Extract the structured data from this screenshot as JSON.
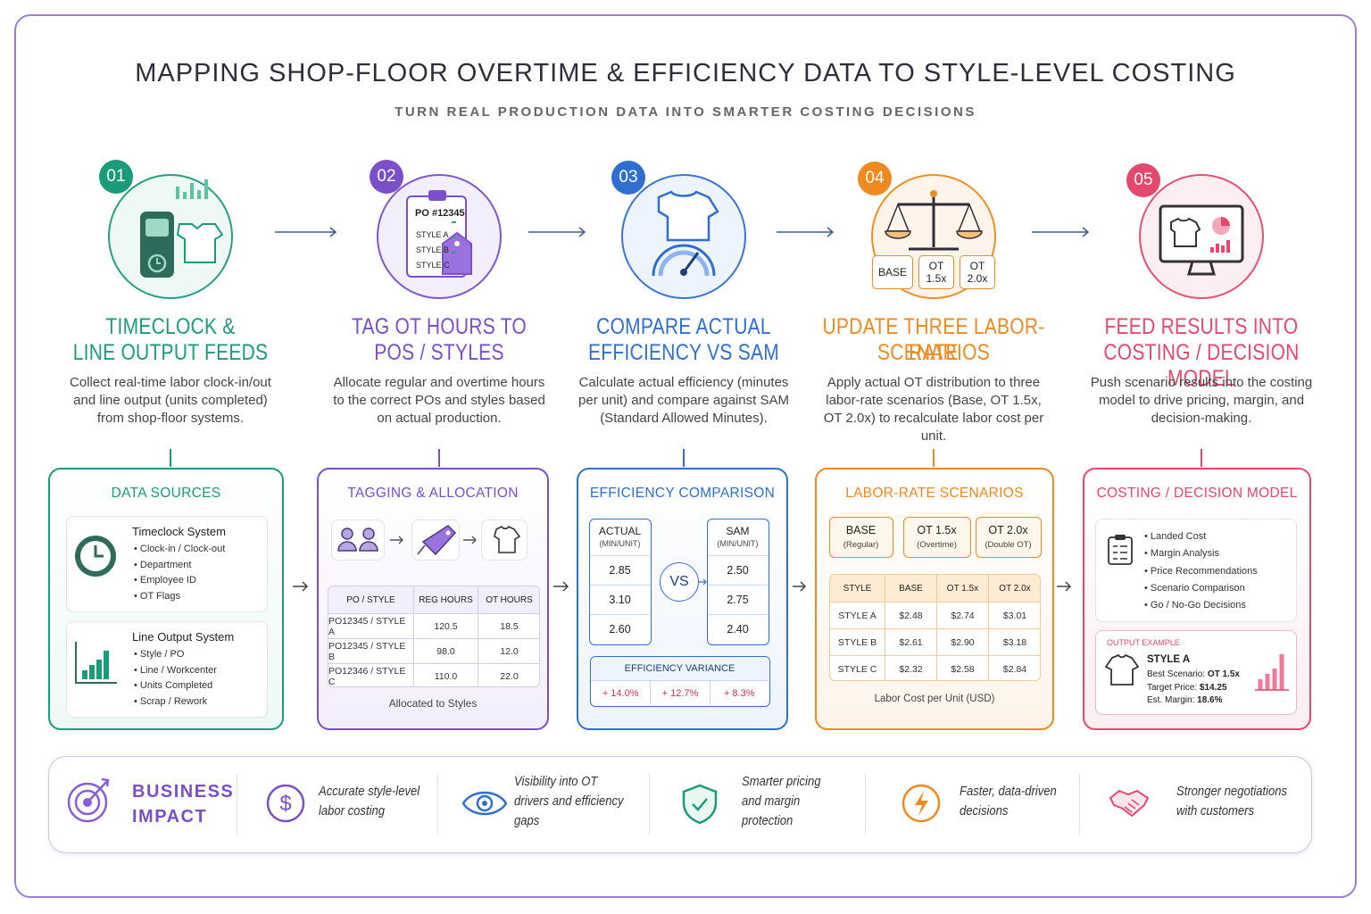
{
  "header": {
    "title": "MAPPING SHOP-FLOOR OVERTIME & EFFICIENCY DATA TO STYLE-LEVEL COSTING",
    "subtitle": "TURN REAL PRODUCTION DATA INTO SMARTER COSTING DECISIONS"
  },
  "steps": [
    {
      "number": "01",
      "title_lines": [
        "TIMECLOCK &",
        "LINE OUTPUT FEEDS"
      ],
      "description": "Collect real-time labor clock-in/out and line output (units completed) from shop-floor systems."
    },
    {
      "number": "02",
      "title_lines": [
        "TAG OT HOURS TO",
        "POS / STYLES"
      ],
      "description": "Allocate regular and overtime hours to the correct POs and styles based on actual production.",
      "icon_lines": [
        "PO #12345",
        "STYLE A",
        "STYLE B",
        "STYLE C"
      ]
    },
    {
      "number": "03",
      "title_lines": [
        "COMPARE ACTUAL",
        "EFFICIENCY VS SAM"
      ],
      "description": "Calculate actual efficiency (minutes per unit) and compare against SAM (Standard Allowed Minutes)."
    },
    {
      "number": "04",
      "title_lines": [
        "UPDATE THREE LABOR-RATE",
        "SCENARIOS"
      ],
      "description": "Apply actual OT distribution to three labor-rate scenarios (Base, OT 1.5x, OT 2.0x) to recalculate labor cost per unit.",
      "icon_lines": [
        "BASE",
        "OT 1.5x",
        "OT 2.0x"
      ]
    },
    {
      "number": "05",
      "title_lines": [
        "FEED RESULTS INTO",
        "COSTING / DECISION MODEL"
      ],
      "description": "Push scenario results into the costing model to drive pricing, margin, and decision-making."
    }
  ],
  "data_sources": {
    "title": "DATA SOURCES",
    "systems": [
      {
        "name": "Timeclock System",
        "items": [
          "Clock-in / Clock-out",
          "Department",
          "Employee ID",
          "OT Flags"
        ]
      },
      {
        "name": "Line Output System",
        "items": [
          "Style / PO",
          "Line / Workcenter",
          "Units Completed",
          "Scrap / Rework"
        ]
      }
    ]
  },
  "tagging": {
    "title": "TAGGING & ALLOCATION",
    "columns": [
      "PO / STYLE",
      "REG HOURS",
      "OT HOURS"
    ],
    "rows": [
      [
        "PO12345 / STYLE A",
        "120.5",
        "18.5"
      ],
      [
        "PO12345 / STYLE B",
        "98.0",
        "12.0"
      ],
      [
        "PO12346 / STYLE C",
        "110.0",
        "22.0"
      ]
    ],
    "caption": "Allocated to Styles"
  },
  "efficiency": {
    "title": "EFFICIENCY COMPARISON",
    "actual": {
      "label": "ACTUAL",
      "unit": "(MIN/UNIT)",
      "values": [
        "2.85",
        "3.10",
        "2.60"
      ]
    },
    "sam": {
      "label": "SAM",
      "unit": "(MIN/UNIT)",
      "values": [
        "2.50",
        "2.75",
        "2.40"
      ]
    },
    "vs": "VS",
    "variance": {
      "label": "EFFICIENCY VARIANCE",
      "values": [
        "+ 14.0%",
        "+ 12.7%",
        "+ 8.3%"
      ]
    }
  },
  "labor": {
    "title": "LABOR-RATE SCENARIOS",
    "scenarios": [
      {
        "name": "BASE",
        "note": "(Regular)"
      },
      {
        "name": "OT 1.5x",
        "note": "(Overtime)"
      },
      {
        "name": "OT 2.0x",
        "note": "(Double OT)"
      }
    ],
    "columns": [
      "STYLE",
      "BASE",
      "OT 1.5x",
      "OT 2.0x"
    ],
    "rows": [
      [
        "STYLE A",
        "$2.48",
        "$2.74",
        "$3.01"
      ],
      [
        "STYLE B",
        "$2.61",
        "$2.90",
        "$3.18"
      ],
      [
        "STYLE C",
        "$2.32",
        "$2.58",
        "$2.84"
      ]
    ],
    "caption": "Labor Cost per Unit (USD)"
  },
  "costing": {
    "title": "COSTING / DECISION MODEL",
    "items": [
      "Landed Cost",
      "Margin Analysis",
      "Price Recommendations",
      "Scenario Comparison",
      "Go / No-Go Decisions"
    ],
    "output": {
      "label": "OUTPUT EXAMPLE",
      "style": "STYLE A",
      "lines": [
        {
          "label": "Best Scenario:",
          "value": "OT 1.5x"
        },
        {
          "label": "Target Price:",
          "value": "$14.25"
        },
        {
          "label": "Est. Margin:",
          "value": "18.6%"
        }
      ]
    }
  },
  "impact": {
    "title_lines": [
      "BUSINESS",
      "IMPACT"
    ],
    "items": [
      [
        "Accurate style-level",
        "labor costing"
      ],
      [
        "Visibility into OT",
        "drivers and efficiency",
        "gaps"
      ],
      [
        "Smarter pricing",
        "and margin",
        "protection"
      ],
      [
        "Faster, data-driven",
        "decisions"
      ],
      [
        "Stronger negotiations",
        "with customers"
      ]
    ]
  }
}
